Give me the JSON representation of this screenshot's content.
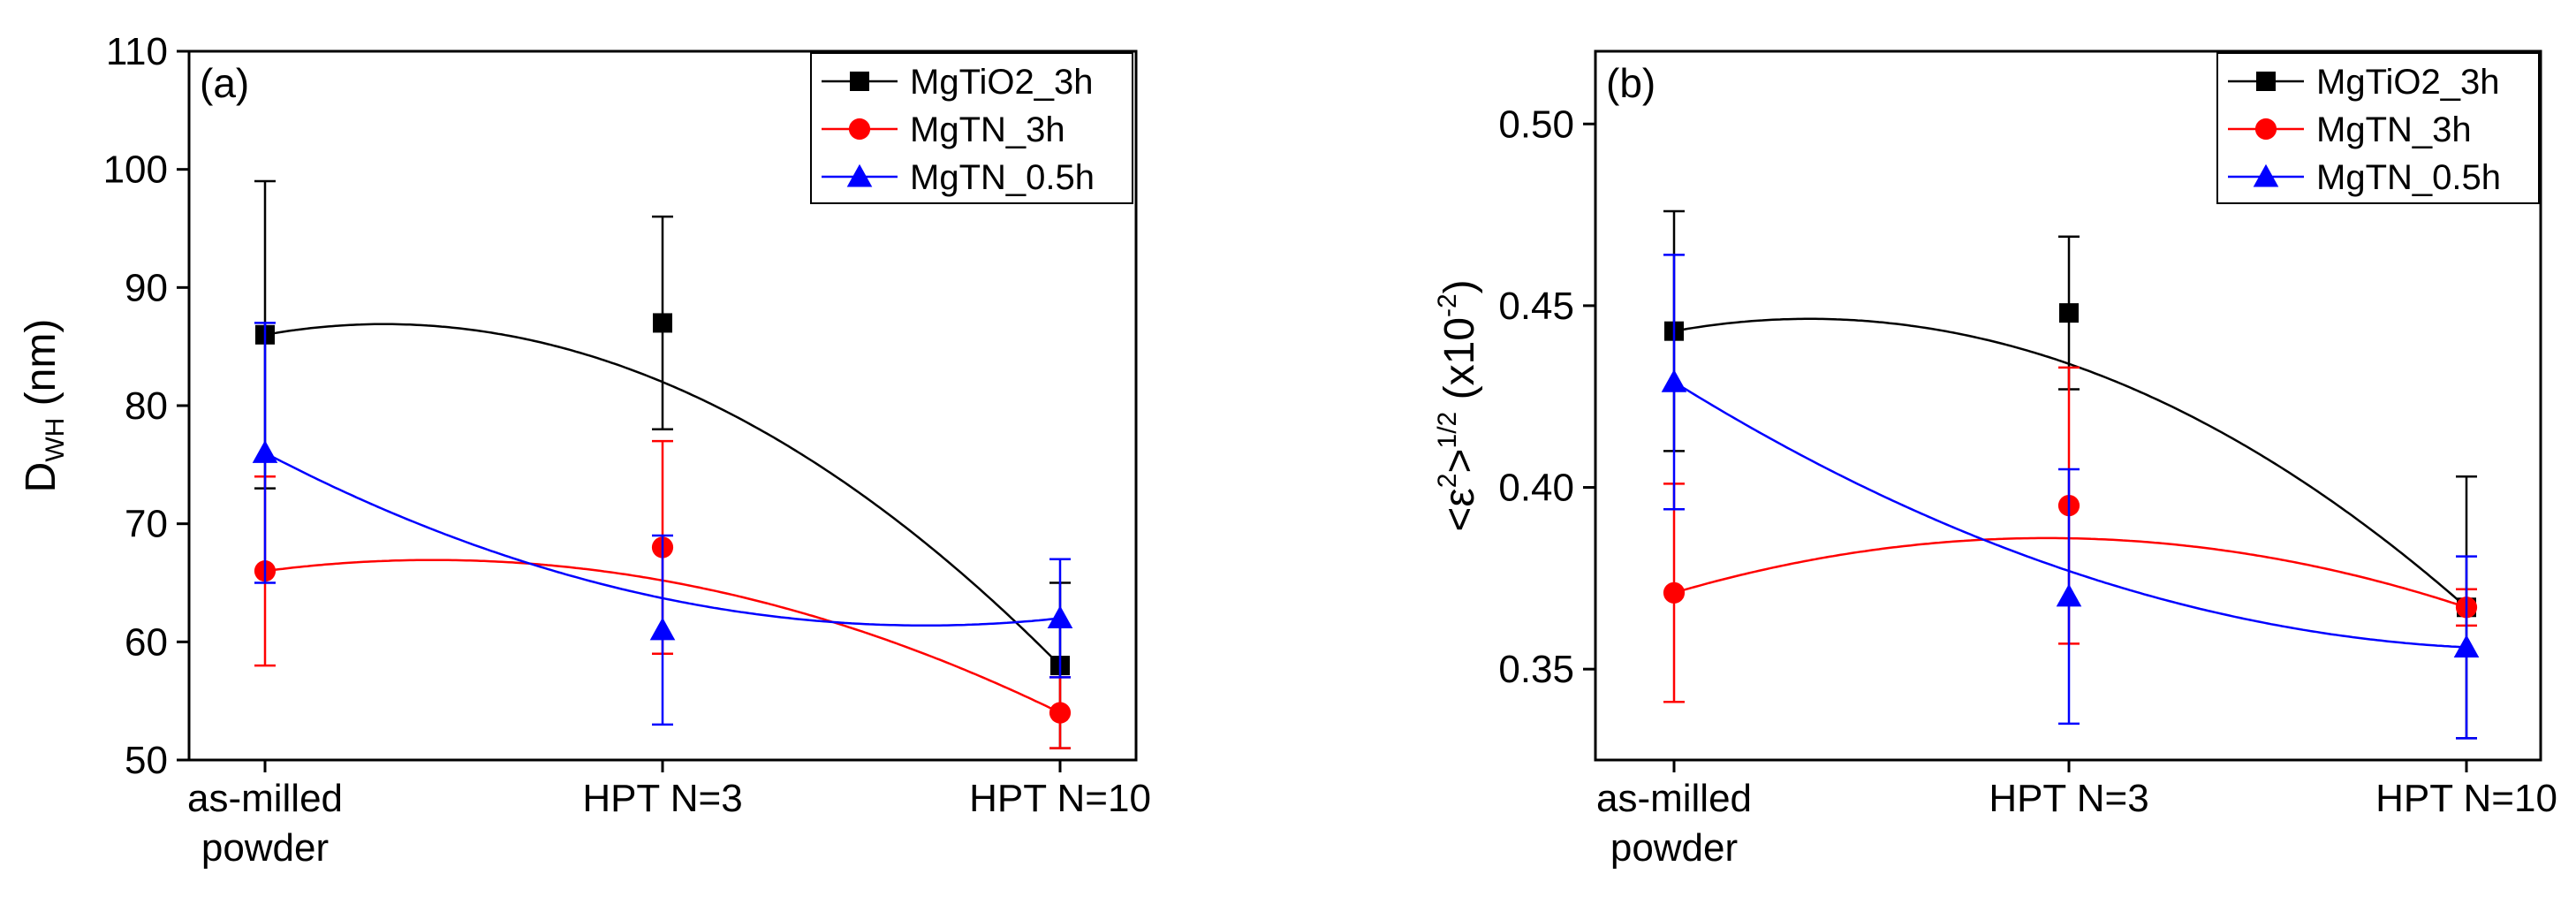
{
  "chart_data": [
    {
      "type": "line",
      "panel_label": "(a)",
      "categories": [
        "as-milled powder",
        "HPT N=3",
        "HPT N=10"
      ],
      "category_lines": [
        [
          "as-milled",
          "powder"
        ],
        [
          "HPT N=3"
        ],
        [
          "HPT N=10"
        ]
      ],
      "ylabel": {
        "main": "D",
        "sub": "WH",
        "rest": " (nm)"
      },
      "ylim": [
        50,
        110
      ],
      "yticks": [
        50,
        60,
        70,
        80,
        90,
        100,
        110
      ],
      "legend_position": "top-right",
      "grid": false,
      "series": [
        {
          "name": "MgTiO2_3h",
          "color": "#000000",
          "marker": "square",
          "values": [
            86,
            87,
            58
          ],
          "errors": [
            13,
            9,
            7
          ],
          "fit": [
            86,
            82,
            58
          ]
        },
        {
          "name": "MgTN_3h",
          "color": "#ff0000",
          "marker": "circle",
          "values": [
            66,
            68,
            54
          ],
          "errors": [
            8,
            9,
            3
          ],
          "fit": [
            66,
            65.2,
            54
          ]
        },
        {
          "name": "MgTN_0.5h",
          "color": "#0000ff",
          "marker": "triangle",
          "values": [
            76,
            61,
            62
          ],
          "errors": [
            11,
            8,
            5
          ],
          "fit": [
            76,
            63.7,
            62
          ]
        }
      ]
    },
    {
      "type": "line",
      "panel_label": "(b)",
      "categories": [
        "as-milled powder",
        "HPT N=3",
        "HPT N=10"
      ],
      "category_lines": [
        [
          "as-milled",
          "powder"
        ],
        [
          "HPT N=3"
        ],
        [
          "HPT N=10"
        ]
      ],
      "ylabel": {
        "open": "<ε",
        "sup1": "2",
        "close": ">",
        "sup2": "1/2",
        "rest": " (x10",
        "sup3": "-2",
        "end": ")"
      },
      "ylim": [
        0.325,
        0.52
      ],
      "yticks": [
        0.35,
        0.4,
        0.45,
        0.5
      ],
      "ytick_labels": [
        "0.35",
        "0.40",
        "0.45",
        "0.50"
      ],
      "legend_position": "top-right",
      "grid": false,
      "series": [
        {
          "name": "MgTiO2_3h",
          "color": "#000000",
          "marker": "square",
          "values": [
            0.443,
            0.448,
            0.367
          ],
          "errors": [
            0.033,
            0.021,
            0.036
          ],
          "fit": [
            0.443,
            0.434,
            0.367
          ]
        },
        {
          "name": "MgTN_3h",
          "color": "#ff0000",
          "marker": "circle",
          "values": [
            0.371,
            0.395,
            0.367
          ],
          "errors": [
            0.03,
            0.038,
            0.005
          ],
          "fit": [
            0.371,
            0.386,
            0.367
          ]
        },
        {
          "name": "MgTN_0.5h",
          "color": "#0000ff",
          "marker": "triangle",
          "values": [
            0.429,
            0.37,
            0.356
          ],
          "errors": [
            0.035,
            0.035,
            0.025
          ],
          "fit": [
            0.429,
            0.377,
            0.356
          ]
        }
      ]
    }
  ]
}
